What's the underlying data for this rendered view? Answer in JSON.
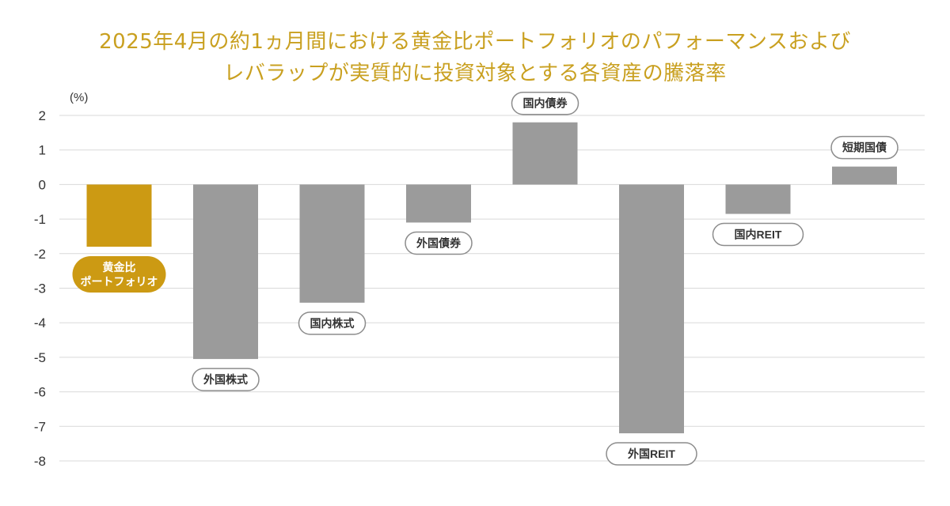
{
  "chart_data": {
    "type": "bar",
    "title": "2025年4月の約1ヵ月間における黄金比ポートフォリオのパフォーマンスおよび",
    "subtitle": "レバラップが実質的に投資対象とする各資産の騰落率",
    "ylabel": "(%)",
    "ylim": [
      -8,
      2
    ],
    "yticks": [
      2,
      1,
      0,
      -1,
      -2,
      -3,
      -4,
      -5,
      -6,
      -7,
      -8
    ],
    "ytick_labels": [
      "2",
      "1",
      "0",
      "-1",
      "-2",
      "-3",
      "-4",
      "-5",
      "-6",
      "-7",
      "-8"
    ],
    "grid": true,
    "categories": [
      "黄金比\nポートフォリオ",
      "外国株式",
      "国内株式",
      "外国債券",
      "国内債券",
      "外国REIT",
      "国内REIT",
      "短期国債"
    ],
    "values": [
      -1.8,
      -5.05,
      -3.42,
      -1.1,
      1.8,
      -7.2,
      -0.85,
      0.52
    ],
    "colors": {
      "highlight": "#cc9a13",
      "bar": "#9b9b9b",
      "grid": "#d9d9d9",
      "title": "#c9a020",
      "axis_text": "#333333",
      "label_border": "#8c8c8c",
      "label_text": "#333333"
    }
  }
}
